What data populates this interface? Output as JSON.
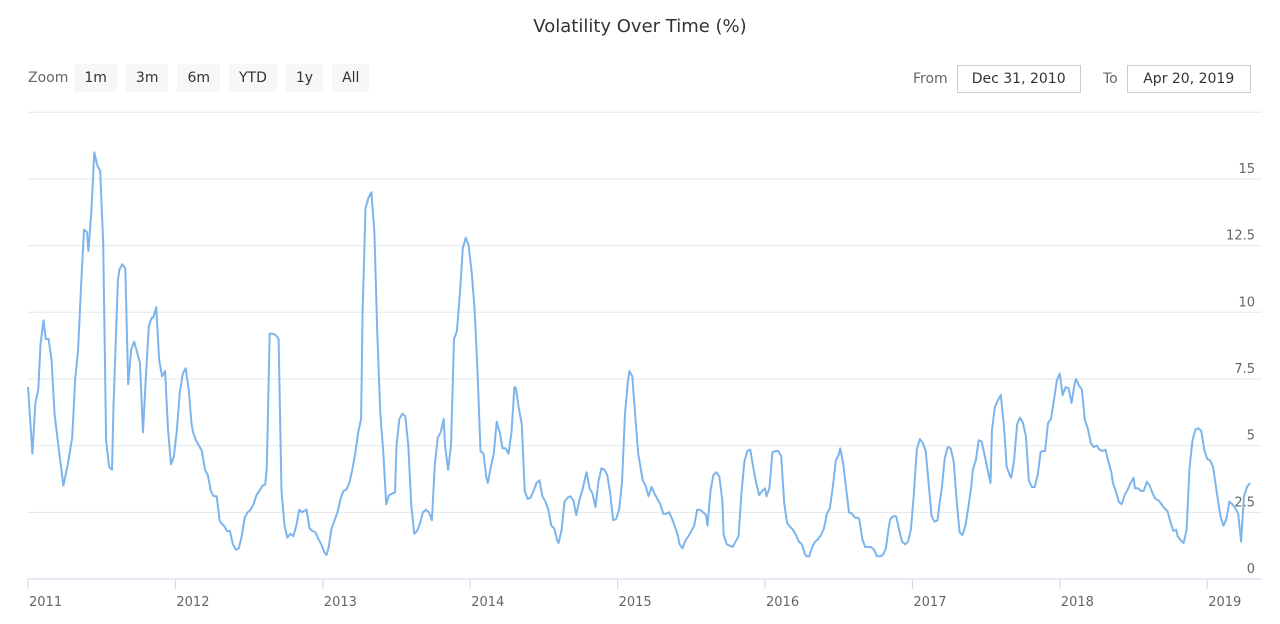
{
  "chart_data": {
    "type": "line",
    "title": "Volatility Over Time (%)",
    "xlabel": "",
    "ylabel": "",
    "x_ticks": [
      "2011",
      "2012",
      "2013",
      "2014",
      "2015",
      "2016",
      "2017",
      "2018",
      "2019"
    ],
    "y_ticks": [
      "0",
      "2.5",
      "5",
      "7.5",
      "10",
      "12.5",
      "15"
    ],
    "ylim": [
      0,
      17.5
    ],
    "xlim": [
      2011.0,
      2019.3
    ],
    "grid": true,
    "line_color": "#7cb5ec",
    "series": [
      {
        "x": [
          2011.0,
          2011.03,
          2011.05,
          2011.07,
          2011.085,
          2011.105,
          2011.12,
          2011.14,
          2011.16,
          2011.18,
          2011.21,
          2011.24,
          2011.27,
          2011.3,
          2011.32,
          2011.34,
          2011.36,
          2011.38,
          2011.4,
          2011.41,
          2011.43,
          2011.45,
          2011.47,
          2011.49,
          2011.51,
          2011.53,
          2011.55,
          2011.57,
          2011.58,
          2011.61,
          2011.62,
          2011.64,
          2011.66,
          2011.68,
          2011.7,
          2011.72,
          2011.74,
          2011.76,
          2011.78,
          2011.8,
          2011.82,
          2011.84,
          2011.85,
          2011.87,
          2011.89,
          2011.91,
          2011.93,
          2011.95,
          2011.97,
          2011.99,
          2012.01,
          2012.03,
          2012.05,
          2012.07,
          2012.09,
          2012.11,
          2012.12,
          2012.14,
          2012.16,
          2012.18,
          2012.2,
          2012.22,
          2012.24,
          2012.26,
          2012.28,
          2012.3,
          2012.31,
          2012.33,
          2012.35,
          2012.37,
          2012.39,
          2012.41,
          2012.43,
          2012.45,
          2012.47,
          2012.49,
          2012.51,
          2012.53,
          2012.55,
          2012.57,
          2012.59,
          2012.61,
          2012.62,
          2012.64,
          2012.66,
          2012.68,
          2012.7,
          2012.72,
          2012.74,
          2012.76,
          2012.78,
          2012.8,
          2012.82,
          2012.84,
          2012.86,
          2012.87,
          2012.89,
          2012.91,
          2012.93,
          2012.95,
          2012.97,
          2012.99,
          2013.01,
          2013.025,
          2013.04,
          2013.06,
          2013.08,
          2013.1,
          2013.12,
          2013.14,
          2013.16,
          2013.18,
          2013.2,
          2013.22,
          2013.24,
          2013.26,
          2013.27,
          2013.29,
          2013.31,
          2013.33,
          2013.35,
          2013.37,
          2013.39,
          2013.41,
          2013.43,
          2013.45,
          2013.47,
          2013.49,
          2013.5,
          2013.52,
          2013.54,
          2013.56,
          2013.58,
          2013.6,
          2013.62,
          2013.64,
          2013.66,
          2013.68,
          2013.7,
          2013.72,
          2013.74,
          2013.76,
          2013.78,
          2013.8,
          2013.82,
          2013.83,
          2013.85,
          2013.87,
          2013.89,
          2013.91,
          2013.93,
          2013.95,
          2013.97,
          2013.99,
          2014.01,
          2014.03,
          2014.05,
          2014.07,
          2014.09,
          2014.11,
          2014.12,
          2014.14,
          2014.16,
          2014.18,
          2014.2,
          2014.22,
          2014.24,
          2014.26,
          2014.28,
          2014.3,
          2014.31,
          2014.33,
          2014.35,
          2014.37,
          2014.39,
          2014.41,
          2014.43,
          2014.45,
          2014.47,
          2014.49,
          2014.51,
          2014.53,
          2014.55,
          2014.57,
          2014.59,
          2014.6,
          2014.62,
          2014.64,
          2014.66,
          2014.68,
          2014.7,
          2014.72,
          2014.74,
          2014.76,
          2014.78,
          2014.79,
          2014.81,
          2014.83,
          2014.85,
          2014.87,
          2014.89,
          2014.91,
          2014.93,
          2014.95,
          2014.97,
          2014.99,
          2015.01,
          2015.03,
          2015.05,
          2015.07,
          2015.08,
          2015.1,
          2015.12,
          2015.14,
          2015.17,
          2015.19,
          2015.21,
          2015.23,
          2015.25,
          2015.27,
          2015.29,
          2015.31,
          2015.33,
          2015.35,
          2015.37,
          2015.39,
          2015.41,
          2015.42,
          2015.44,
          2015.46,
          2015.48,
          2015.5,
          2015.52,
          2015.54,
          2015.56,
          2015.58,
          2015.6,
          2015.61,
          2015.63,
          2015.65,
          2015.67,
          2015.69,
          2015.71,
          2015.72,
          2015.74,
          2015.76,
          2015.78,
          2015.8,
          2015.82,
          2015.84,
          2015.86,
          2015.88,
          2015.9,
          2015.92,
          2015.94,
          2015.96,
          2015.98,
          2016.0,
          2016.01,
          2016.03,
          2016.05,
          2016.07,
          2016.09,
          2016.11,
          2016.13,
          2016.15,
          2016.17,
          2016.19,
          2016.21,
          2016.23,
          2016.25,
          2016.27,
          2016.28,
          2016.3,
          2016.32,
          2016.34,
          2016.36,
          2016.38,
          2016.4,
          2016.42,
          2016.44,
          2016.46,
          2016.48,
          2016.5,
          2016.51,
          2016.53,
          2016.55,
          2016.57,
          2016.59,
          2016.61,
          2016.63,
          2016.64,
          2016.66,
          2016.68,
          2016.7,
          2016.72,
          2016.74,
          2016.76,
          2016.78,
          2016.8,
          2016.82,
          2016.84,
          2016.85,
          2016.87,
          2016.89,
          2016.91,
          2016.93,
          2016.95,
          2016.97,
          2016.99,
          2017.01,
          2017.03,
          2017.05,
          2017.07,
          2017.09,
          2017.11,
          2017.13,
          2017.15,
          2017.17,
          2017.18,
          2017.2,
          2017.22,
          2017.24,
          2017.26,
          2017.28,
          2017.3,
          2017.32,
          2017.34,
          2017.36,
          2017.38,
          2017.4,
          2017.41,
          2017.43,
          2017.45,
          2017.47,
          2017.49,
          2017.51,
          2017.53,
          2017.54,
          2017.56,
          2017.58,
          2017.6,
          2017.62,
          2017.64,
          2017.66,
          2017.67,
          2017.69,
          2017.71,
          2017.73,
          2017.75,
          2017.77,
          2017.79,
          2017.81,
          2017.83,
          2017.85,
          2017.87,
          2017.88,
          2017.9,
          2017.92,
          2017.94,
          2017.96,
          2017.98,
          2018.0,
          2018.02,
          2018.04,
          2018.06,
          2018.08,
          2018.1,
          2018.11,
          2018.13,
          2018.15,
          2018.17,
          2018.19,
          2018.21,
          2018.23,
          2018.25,
          2018.27,
          2018.29,
          2018.31,
          2018.33,
          2018.35,
          2018.36,
          2018.38,
          2018.4,
          2018.42,
          2018.44,
          2018.46,
          2018.48,
          2018.5,
          2018.51,
          2018.53,
          2018.55,
          2018.57,
          2018.59,
          2018.61,
          2018.63,
          2018.65,
          2018.67,
          2018.69,
          2018.71,
          2018.73,
          2018.75,
          2018.77,
          2018.79,
          2018.8,
          2018.82,
          2018.84,
          2018.86,
          2018.88,
          2018.9,
          2018.92,
          2018.94,
          2018.96,
          2018.98,
          2019.0,
          2019.02,
          2019.04,
          2019.06,
          2019.08,
          2019.09,
          2019.11,
          2019.13,
          2019.15,
          2019.17,
          2019.19,
          2019.21,
          2019.23,
          2019.25,
          2019.27,
          2019.29
        ],
        "y": [
          7.2,
          4.7,
          6.6,
          7.1,
          8.8,
          9.7,
          9.0,
          9.0,
          8.2,
          6.2,
          4.8,
          3.5,
          4.3,
          5.3,
          7.5,
          8.6,
          11.0,
          13.1,
          13.0,
          12.3,
          13.8,
          16.0,
          15.5,
          15.3,
          12.6,
          5.2,
          4.2,
          4.1,
          6.5,
          11.2,
          11.6,
          11.8,
          11.65,
          7.3,
          8.6,
          8.9,
          8.5,
          8.1,
          5.5,
          7.6,
          9.5,
          9.8,
          9.8,
          10.2,
          8.2,
          7.6,
          7.8,
          5.6,
          4.3,
          4.6,
          5.6,
          7.0,
          7.7,
          7.9,
          7.1,
          5.8,
          5.5,
          5.2,
          5.0,
          4.8,
          4.1,
          3.9,
          3.3,
          3.1,
          3.1,
          2.2,
          2.1,
          2.0,
          1.8,
          1.8,
          1.3,
          1.1,
          1.15,
          1.6,
          2.3,
          2.5,
          2.6,
          2.8,
          3.15,
          3.3,
          3.5,
          3.55,
          4.2,
          9.2,
          9.2,
          9.15,
          9.0,
          3.3,
          2.0,
          1.55,
          1.7,
          1.6,
          2.0,
          2.6,
          2.5,
          2.55,
          2.6,
          1.9,
          1.8,
          1.75,
          1.5,
          1.3,
          1.0,
          0.9,
          1.2,
          1.9,
          2.2,
          2.5,
          3.0,
          3.3,
          3.35,
          3.6,
          4.1,
          4.7,
          5.5,
          6.0,
          10.0,
          13.9,
          14.3,
          14.5,
          13.0,
          9.2,
          6.2,
          4.8,
          2.8,
          3.15,
          3.2,
          3.25,
          5.0,
          6.0,
          6.2,
          6.1,
          5.0,
          2.8,
          1.7,
          1.8,
          2.1,
          2.5,
          2.6,
          2.5,
          2.2,
          4.3,
          5.3,
          5.5,
          6.0,
          5.0,
          4.1,
          5.0,
          9.0,
          9.3,
          10.7,
          12.4,
          12.8,
          12.5,
          11.5,
          10.1,
          7.7,
          4.8,
          4.7,
          3.8,
          3.6,
          4.2,
          4.7,
          5.9,
          5.5,
          4.9,
          4.9,
          4.7,
          5.5,
          7.2,
          7.15,
          6.4,
          5.8,
          3.3,
          3.0,
          3.05,
          3.3,
          3.6,
          3.7,
          3.1,
          2.9,
          2.6,
          2.0,
          1.9,
          1.45,
          1.35,
          1.85,
          2.9,
          3.05,
          3.1,
          2.95,
          2.4,
          2.95,
          3.3,
          3.8,
          4.0,
          3.4,
          3.2,
          2.7,
          3.65,
          4.15,
          4.1,
          3.9,
          3.2,
          2.2,
          2.25,
          2.6,
          3.6,
          6.2,
          7.4,
          7.8,
          7.6,
          6.1,
          4.7,
          3.7,
          3.5,
          3.1,
          3.45,
          3.2,
          3.0,
          2.8,
          2.45,
          2.45,
          2.5,
          2.25,
          1.95,
          1.6,
          1.3,
          1.15,
          1.45,
          1.6,
          1.8,
          2.0,
          2.6,
          2.6,
          2.5,
          2.4,
          2.0,
          3.3,
          3.9,
          4.0,
          3.85,
          2.95,
          1.65,
          1.3,
          1.25,
          1.2,
          1.4,
          1.6,
          3.2,
          4.4,
          4.8,
          4.85,
          4.2,
          3.6,
          3.15,
          3.3,
          3.4,
          3.1,
          3.4,
          4.75,
          4.8,
          4.8,
          4.6,
          2.85,
          2.1,
          1.95,
          1.85,
          1.65,
          1.4,
          1.3,
          0.95,
          0.85,
          0.85,
          1.2,
          1.4,
          1.5,
          1.65,
          1.9,
          2.45,
          2.65,
          3.45,
          4.45,
          4.65,
          4.9,
          4.35,
          3.4,
          2.5,
          2.45,
          2.3,
          2.3,
          2.25,
          1.5,
          1.2,
          1.2,
          1.2,
          1.1,
          0.85,
          0.85,
          0.9,
          1.15,
          1.95,
          2.25,
          2.35,
          2.35,
          1.85,
          1.4,
          1.3,
          1.4,
          1.85,
          3.2,
          4.85,
          5.25,
          5.1,
          4.8,
          3.6,
          2.35,
          2.15,
          2.2,
          2.65,
          3.45,
          4.55,
          4.95,
          4.9,
          4.4,
          2.95,
          1.75,
          1.65,
          2.0,
          2.7,
          3.5,
          4.1,
          4.45,
          5.2,
          5.15,
          4.65,
          4.1,
          3.6,
          5.6,
          6.45,
          6.7,
          6.9,
          5.8,
          4.2,
          3.9,
          3.8,
          4.45,
          5.8,
          6.05,
          5.85,
          5.35,
          3.7,
          3.45,
          3.45,
          3.9,
          4.75,
          4.8,
          4.8,
          5.85,
          6.0,
          6.7,
          7.45,
          7.7,
          6.9,
          7.2,
          7.15,
          6.6,
          7.3,
          7.5,
          7.25,
          7.1,
          5.95,
          5.65,
          5.1,
          4.95,
          5.0,
          4.85,
          4.8,
          4.85,
          4.4,
          4.0,
          3.6,
          3.3,
          2.9,
          2.8,
          3.15,
          3.35,
          3.6,
          3.8,
          3.4,
          3.4,
          3.3,
          3.3,
          3.65,
          3.5,
          3.2,
          3.0,
          2.95,
          2.8,
          2.65,
          2.55,
          2.15,
          1.8,
          1.85,
          1.6,
          1.45,
          1.35,
          1.85,
          4.15,
          5.2,
          5.6,
          5.65,
          5.55,
          4.85,
          4.5,
          4.45,
          4.2,
          3.45,
          2.7,
          2.35,
          2.0,
          2.25,
          2.9,
          2.8,
          2.65,
          2.45,
          1.4,
          3.1,
          3.45,
          3.6
        ]
      }
    ]
  },
  "range_selector": {
    "zoom_label": "Zoom",
    "buttons": [
      "1m",
      "3m",
      "6m",
      "YTD",
      "1y",
      "All"
    ],
    "from_label": "From",
    "from_value": "Dec 31, 2010",
    "to_label": "To",
    "to_value": "Apr 20, 2019"
  }
}
